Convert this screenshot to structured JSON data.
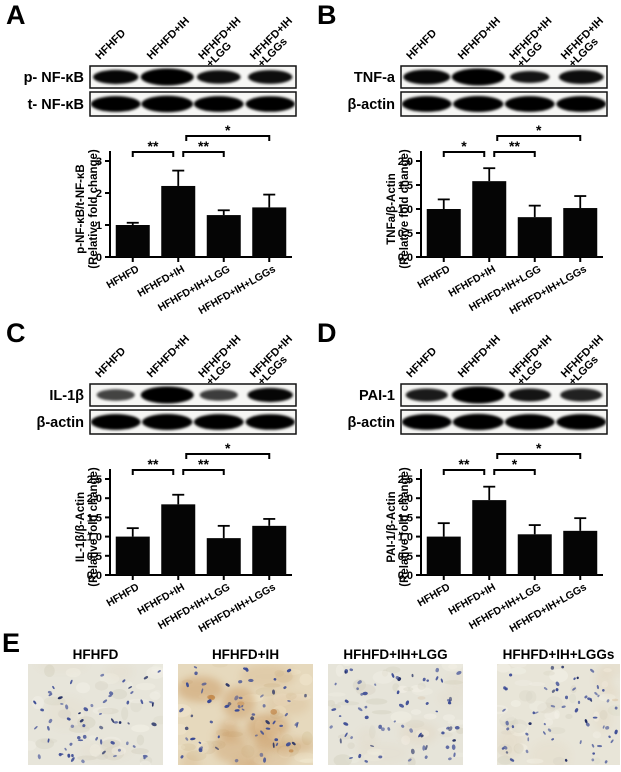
{
  "figure": {
    "panels": [
      {
        "letter": "A",
        "blot": {
          "lane_labels": [
            [
              "HFHFD"
            ],
            [
              "HFHFD+IH"
            ],
            [
              "HFHFD+IH",
              "+LGG"
            ],
            [
              "HFHFD+IH",
              "+LGGs"
            ]
          ],
          "rows": [
            {
              "label": "p- NF-κB",
              "bands": [
                {
                  "size": 0.72,
                  "shade": 0.95
                },
                {
                  "size": 1.0,
                  "shade": 1.0
                },
                {
                  "size": 0.66,
                  "shade": 0.9
                },
                {
                  "size": 0.68,
                  "shade": 0.9
                }
              ]
            },
            {
              "label": "t- NF-κB",
              "bands": [
                {
                  "size": 0.88,
                  "shade": 1.0
                },
                {
                  "size": 0.95,
                  "shade": 1.0
                },
                {
                  "size": 0.88,
                  "shade": 1.0
                },
                {
                  "size": 0.86,
                  "shade": 1.0
                }
              ]
            }
          ]
        },
        "chart_data": {
          "type": "bar",
          "categories": [
            "HFHFD",
            "HFHFD+IH",
            "HFHFD+IH+LGG",
            "HFHFD+IH+LGGs"
          ],
          "values": [
            1.0,
            2.22,
            1.31,
            1.55
          ],
          "errors": [
            0.07,
            0.48,
            0.15,
            0.4
          ],
          "title": "",
          "xlabel": "",
          "ylabel_lines": [
            "p-NF-κB/t-NF-κB",
            "(Relative fold change)"
          ],
          "ylim": [
            0,
            3
          ],
          "yticks": [
            0,
            1,
            2,
            3
          ],
          "ytick_labels": [
            "0",
            "1",
            "2",
            "3"
          ],
          "bar_color": "#050505",
          "legend": "none",
          "grid": false,
          "significance": [
            {
              "from": 0,
              "to": 1,
              "label": "**",
              "level": 0,
              "x1_off": 0,
              "x2_off": -5
            },
            {
              "from": 1,
              "to": 2,
              "label": "**",
              "level": 0,
              "x1_off": 5,
              "x2_off": 0
            },
            {
              "from": 1,
              "to": 3,
              "label": "*",
              "level": 1,
              "x1_off": 8,
              "x2_off": 0
            }
          ]
        }
      },
      {
        "letter": "B",
        "blot": {
          "lane_labels": [
            [
              "HFHFD"
            ],
            [
              "HFHFD+IH"
            ],
            [
              "HFHFD+IH",
              "+LGG"
            ],
            [
              "HFHFD+IH",
              "+LGGs"
            ]
          ],
          "rows": [
            {
              "label": "TNF-a",
              "bands": [
                {
                  "size": 0.78,
                  "shade": 0.95
                },
                {
                  "size": 1.0,
                  "shade": 1.0
                },
                {
                  "size": 0.5,
                  "shade": 0.85
                },
                {
                  "size": 0.7,
                  "shade": 0.9
                }
              ]
            },
            {
              "label": "β-actin",
              "bands": [
                {
                  "size": 0.88,
                  "shade": 1.0
                },
                {
                  "size": 0.9,
                  "shade": 1.0
                },
                {
                  "size": 0.88,
                  "shade": 1.0
                },
                {
                  "size": 0.88,
                  "shade": 1.0
                }
              ]
            }
          ]
        },
        "chart_data": {
          "type": "bar",
          "categories": [
            "HFHFD",
            "HFHFD+IH",
            "HFHFD+IH+LGG",
            "HFHFD+IH+LGGs"
          ],
          "values": [
            1.0,
            1.58,
            0.83,
            1.02
          ],
          "errors": [
            0.2,
            0.27,
            0.24,
            0.25
          ],
          "title": "",
          "xlabel": "",
          "ylabel_lines": [
            "TNFa/β-Actin",
            "(Relative fold change)"
          ],
          "ylim": [
            0,
            2.0
          ],
          "yticks": [
            0,
            0.5,
            1.0,
            1.5,
            2.0
          ],
          "ytick_labels": [
            "0.0",
            "0.5",
            "1.0",
            "1.5",
            "2.0"
          ],
          "bar_color": "#050505",
          "legend": "none",
          "grid": false,
          "significance": [
            {
              "from": 0,
              "to": 1,
              "label": "*",
              "level": 0,
              "x1_off": 0,
              "x2_off": -5
            },
            {
              "from": 1,
              "to": 2,
              "label": "**",
              "level": 0,
              "x1_off": 5,
              "x2_off": 0
            },
            {
              "from": 1,
              "to": 3,
              "label": "*",
              "level": 1,
              "x1_off": 8,
              "x2_off": 0
            }
          ]
        }
      },
      {
        "letter": "C",
        "blot": {
          "lane_labels": [
            [
              "HFHFD"
            ],
            [
              "HFHFD+IH"
            ],
            [
              "HFHFD+IH",
              "+LGG"
            ],
            [
              "HFHFD+IH",
              "+LGGs"
            ]
          ],
          "rows": [
            {
              "label": "IL-1β",
              "bands": [
                {
                  "size": 0.45,
                  "shade": 0.5
                },
                {
                  "size": 1.0,
                  "shade": 1.0
                },
                {
                  "size": 0.45,
                  "shade": 0.55
                },
                {
                  "size": 0.72,
                  "shade": 0.95
                }
              ]
            },
            {
              "label": "β-actin",
              "bands": [
                {
                  "size": 0.88,
                  "shade": 1.0
                },
                {
                  "size": 0.9,
                  "shade": 1.0
                },
                {
                  "size": 0.88,
                  "shade": 1.0
                },
                {
                  "size": 0.86,
                  "shade": 1.0
                }
              ]
            }
          ]
        },
        "chart_data": {
          "type": "bar",
          "categories": [
            "HFHFD",
            "HFHFD+IH",
            "HFHFD+IH+LGG",
            "HFHFD+IH+LGGs"
          ],
          "values": [
            1.0,
            1.84,
            0.96,
            1.28
          ],
          "errors": [
            0.22,
            0.25,
            0.32,
            0.18
          ],
          "title": "",
          "xlabel": "",
          "ylabel_lines": [
            "IL-1β/β-Actin",
            "(Relative fold change)"
          ],
          "ylim": [
            0,
            2.5
          ],
          "yticks": [
            0,
            0.5,
            1.0,
            1.5,
            2.0,
            2.5
          ],
          "ytick_labels": [
            "0.0",
            "0.5",
            "1.0",
            "1.5",
            "2.0",
            "2.5"
          ],
          "bar_color": "#050505",
          "legend": "none",
          "grid": false,
          "significance": [
            {
              "from": 0,
              "to": 1,
              "label": "**",
              "level": 0,
              "x1_off": 0,
              "x2_off": -5
            },
            {
              "from": 1,
              "to": 2,
              "label": "**",
              "level": 0,
              "x1_off": 5,
              "x2_off": 0
            },
            {
              "from": 1,
              "to": 3,
              "label": "*",
              "level": 1,
              "x1_off": 8,
              "x2_off": 0
            }
          ]
        }
      },
      {
        "letter": "D",
        "blot": {
          "lane_labels": [
            [
              "HFHFD"
            ],
            [
              "HFHFD+IH"
            ],
            [
              "HFHFD+IH",
              "+LGG"
            ],
            [
              "HFHFD+IH",
              "+LGGs"
            ]
          ],
          "rows": [
            {
              "label": "PAI-1",
              "bands": [
                {
                  "size": 0.6,
                  "shade": 0.8
                },
                {
                  "size": 1.0,
                  "shade": 1.0
                },
                {
                  "size": 0.6,
                  "shade": 0.85
                },
                {
                  "size": 0.6,
                  "shade": 0.75
                }
              ]
            },
            {
              "label": "β-actin",
              "bands": [
                {
                  "size": 0.88,
                  "shade": 1.0
                },
                {
                  "size": 0.92,
                  "shade": 1.0
                },
                {
                  "size": 0.88,
                  "shade": 1.0
                },
                {
                  "size": 0.88,
                  "shade": 1.0
                }
              ]
            }
          ]
        },
        "chart_data": {
          "type": "bar",
          "categories": [
            "HFHFD",
            "HFHFD+IH",
            "HFHFD+IH+LGG",
            "HFHFD+IH+LGGs"
          ],
          "values": [
            1.0,
            1.95,
            1.06,
            1.15
          ],
          "errors": [
            0.35,
            0.35,
            0.24,
            0.33
          ],
          "title": "",
          "xlabel": "",
          "ylabel_lines": [
            "PAI-1/β-Actin",
            "(Relative fold change)"
          ],
          "ylim": [
            0,
            2.5
          ],
          "yticks": [
            0,
            0.5,
            1.0,
            1.5,
            2.0,
            2.5
          ],
          "ytick_labels": [
            "0.0",
            "0.5",
            "1.0",
            "1.5",
            "2.0",
            "2.5"
          ],
          "bar_color": "#050505",
          "legend": "none",
          "grid": false,
          "significance": [
            {
              "from": 0,
              "to": 1,
              "label": "**",
              "level": 0,
              "x1_off": 0,
              "x2_off": -5
            },
            {
              "from": 1,
              "to": 2,
              "label": "*",
              "level": 0,
              "x1_off": 5,
              "x2_off": 0
            },
            {
              "from": 1,
              "to": 3,
              "label": "*",
              "level": 1,
              "x1_off": 8,
              "x2_off": 0
            }
          ]
        }
      }
    ],
    "histology": {
      "letter": "E",
      "images": [
        {
          "label": "HFHFD",
          "background": "#e7e5da",
          "texture_light": "#f3f1e8",
          "texture_dark": "#d6d3c4",
          "dab_color": "#c4884a",
          "dab_level": 0.06,
          "nuclei_color": "#3a4a94",
          "nuclei_dark": "#1e2a60",
          "nuclei_count": 62
        },
        {
          "label": "HFHFD+IH",
          "background": "#e6d9bd",
          "texture_light": "#f2e8d0",
          "texture_dark": "#d8c7a4",
          "dab_color": "#c08343",
          "dab_level": 0.6,
          "nuclei_color": "#3a4a94",
          "nuclei_dark": "#1e2a60",
          "nuclei_count": 58
        },
        {
          "label": "HFHFD+IH+LGG",
          "background": "#e6e4d9",
          "texture_light": "#f3f1e7",
          "texture_dark": "#d5d2c2",
          "dab_color": "#c4884a",
          "dab_level": 0.1,
          "nuclei_color": "#3a4a94",
          "nuclei_dark": "#1e2a60",
          "nuclei_count": 66
        },
        {
          "label": "HFHFD+IH+LGGs",
          "background": "#e8e5d8",
          "texture_light": "#f4f2e8",
          "texture_dark": "#d7d4c4",
          "dab_color": "#c4884a",
          "dab_level": 0.15,
          "nuclei_color": "#3a4a94",
          "nuclei_dark": "#1e2a60",
          "nuclei_count": 60
        }
      ]
    }
  }
}
